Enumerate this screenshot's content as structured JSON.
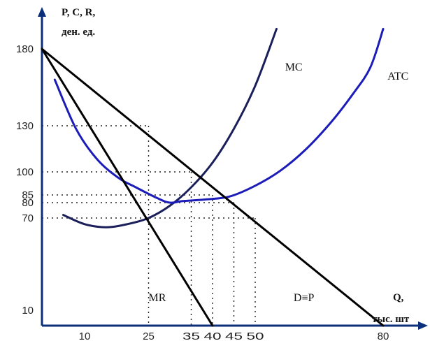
{
  "chart_data": {
    "type": "line",
    "title": "",
    "ylabel_line1": "P, C, R,",
    "ylabel_line2": "ден. ед.",
    "xlabel_line1": "Q,",
    "xlabel_line2": "тыс. шт",
    "xlim": [
      0,
      80
    ],
    "ylim": [
      0,
      180
    ],
    "x_ticks": [
      10,
      25,
      35,
      40,
      45,
      50,
      80
    ],
    "y_ticks": [
      180,
      130,
      100,
      85,
      80,
      70,
      10
    ],
    "grid": false,
    "reference_points": [
      {
        "x": 25,
        "y": 130
      },
      {
        "x": 35,
        "y": 100
      },
      {
        "x": 40,
        "y": 85
      },
      {
        "x": 45,
        "y": 80
      },
      {
        "x": 50,
        "y": 70
      }
    ],
    "series": [
      {
        "name": "MC",
        "color": "#1a1f5a",
        "points": [
          [
            5,
            72
          ],
          [
            10,
            66
          ],
          [
            15,
            64
          ],
          [
            20,
            66
          ],
          [
            25,
            70
          ],
          [
            30,
            78
          ],
          [
            35,
            90
          ],
          [
            40,
            106
          ],
          [
            45,
            128
          ],
          [
            50,
            156
          ],
          [
            55,
            193
          ]
        ]
      },
      {
        "name": "ATC",
        "color": "#1c1cb8",
        "points": [
          [
            3,
            160
          ],
          [
            8,
            128
          ],
          [
            13,
            108
          ],
          [
            18,
            96
          ],
          [
            22,
            90
          ],
          [
            27,
            83
          ],
          [
            30,
            80
          ],
          [
            33,
            81
          ],
          [
            38,
            82
          ],
          [
            44,
            84
          ],
          [
            50,
            91
          ],
          [
            56,
            101
          ],
          [
            62,
            115
          ],
          [
            68,
            133
          ],
          [
            73,
            151
          ],
          [
            77,
            168
          ],
          [
            80,
            193
          ]
        ]
      },
      {
        "name": "D≡P",
        "color": "#000000",
        "points": [
          [
            0,
            180
          ],
          [
            80,
            0
          ]
        ]
      },
      {
        "name": "MR",
        "color": "#000000",
        "points": [
          [
            0,
            180
          ],
          [
            40,
            0
          ]
        ]
      }
    ],
    "curve_labels": [
      {
        "text": "MC",
        "x": 57,
        "y": 166
      },
      {
        "text": "ATC",
        "x": 81,
        "y": 160
      },
      {
        "text": "MR",
        "x": 25,
        "y": 16
      },
      {
        "text": "D≡P",
        "x": 59,
        "y": 16
      }
    ]
  }
}
